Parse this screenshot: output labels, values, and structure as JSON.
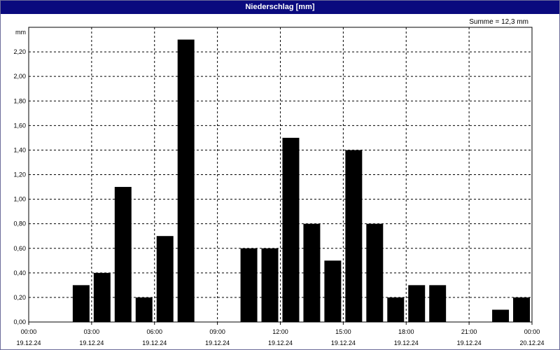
{
  "window": {
    "title": "Niederschlag [mm]"
  },
  "summary": "Summe = 12,3 mm",
  "chart_data": {
    "type": "bar",
    "title": "Niederschlag [mm]",
    "ylabel": "mm",
    "ylim": [
      0,
      2.4
    ],
    "xlim_hours": [
      0,
      24
    ],
    "bar_color": "#000000",
    "grid": true,
    "y_ticks": [
      "0,00",
      "0,20",
      "0,40",
      "0,60",
      "0,80",
      "1,00",
      "1,20",
      "1,40",
      "1,60",
      "1,80",
      "2,00",
      "2,20"
    ],
    "x_ticks": [
      {
        "hour": 0,
        "time": "00:00",
        "date": "19.12.24"
      },
      {
        "hour": 3,
        "time": "03:00",
        "date": "19.12.24"
      },
      {
        "hour": 6,
        "time": "06:00",
        "date": "19.12.24"
      },
      {
        "hour": 9,
        "time": "09:00",
        "date": "19.12.24"
      },
      {
        "hour": 12,
        "time": "12:00",
        "date": "19.12.24"
      },
      {
        "hour": 15,
        "time": "15:00",
        "date": "19.12.24"
      },
      {
        "hour": 18,
        "time": "18:00",
        "date": "19.12.24"
      },
      {
        "hour": 21,
        "time": "21:00",
        "date": "19.12.24"
      },
      {
        "hour": 24,
        "time": "00:00",
        "date": "20.12.24"
      }
    ],
    "hours": [
      0,
      1,
      2,
      3,
      4,
      5,
      6,
      7,
      8,
      9,
      10,
      11,
      12,
      13,
      14,
      15,
      16,
      17,
      18,
      19,
      20,
      21,
      22,
      23
    ],
    "values": [
      0,
      0,
      0.3,
      0.4,
      1.1,
      0.2,
      0.7,
      2.3,
      0,
      0,
      0.6,
      0.6,
      1.5,
      0.8,
      0.5,
      1.4,
      0.8,
      0.2,
      0.3,
      0.3,
      0,
      0,
      0.1,
      0.2
    ]
  }
}
